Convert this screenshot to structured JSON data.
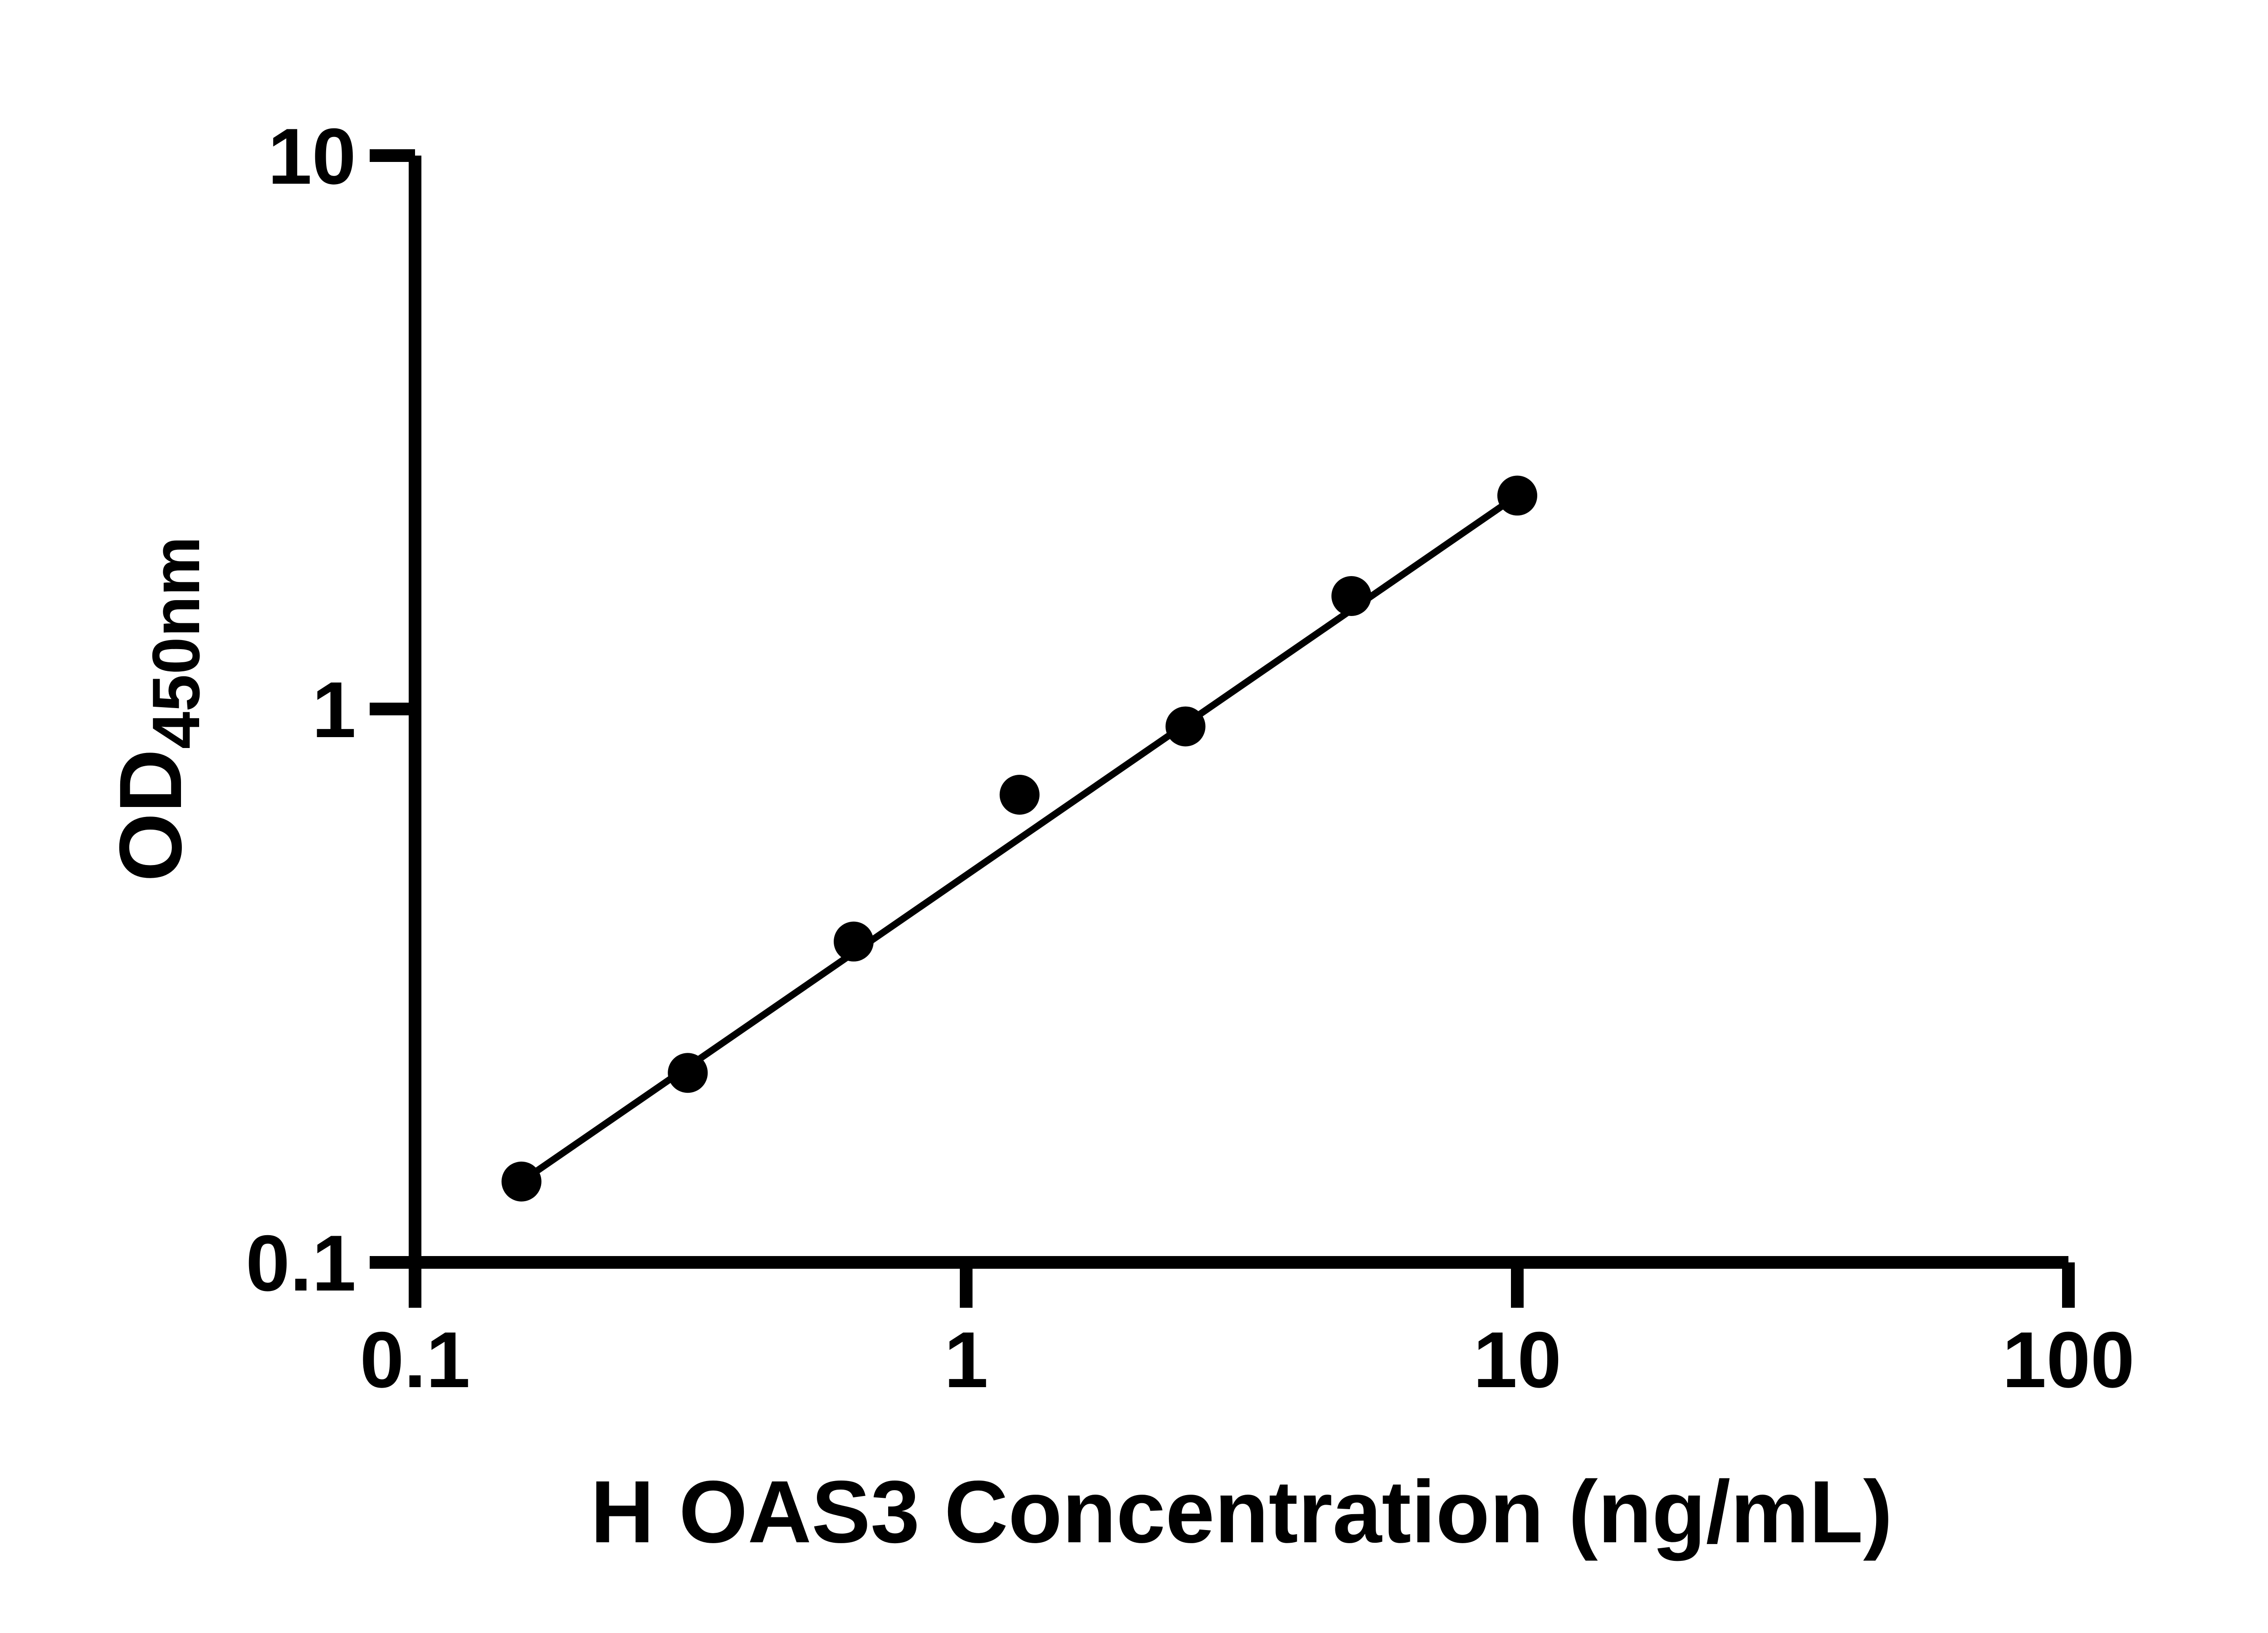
{
  "figure": {
    "background": "#ffffff",
    "description": "ELISA standard curve, log-log scatter plot with fitted line"
  },
  "chart_data": {
    "type": "scatter",
    "title": "",
    "xlabel": "H OAS3 Concentration (ng/mL)",
    "ylabel": "OD450nm",
    "ylabel_main": "OD",
    "ylabel_sub": "450nm",
    "x_scale": "log10",
    "y_scale": "log10",
    "xlim": [
      0.1,
      100
    ],
    "ylim": [
      0.1,
      10
    ],
    "x_ticks": [
      "0.1",
      "1",
      "10",
      "100"
    ],
    "y_ticks": [
      "0.1",
      "1",
      "10"
    ],
    "x": [
      0.156,
      0.3125,
      0.625,
      1.25,
      2.5,
      5,
      10
    ],
    "y": [
      0.14,
      0.22,
      0.38,
      0.7,
      0.93,
      1.6,
      2.43
    ],
    "trendline": {
      "type": "straight-line-through-endpoints",
      "x1": 0.156,
      "y1": 0.14,
      "x2": 10,
      "y2": 2.43
    },
    "marker": {
      "shape": "circle",
      "color": "#000000"
    },
    "line_color": "#000000",
    "axis_color": "#000000",
    "grid": false,
    "legend": false
  }
}
